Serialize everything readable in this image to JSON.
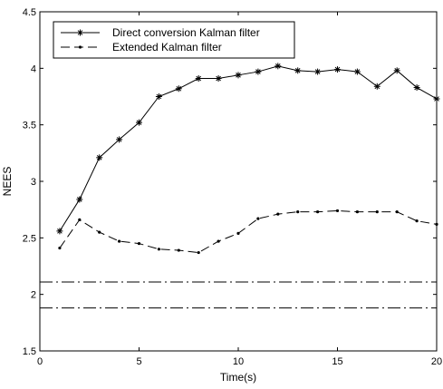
{
  "chart_data": {
    "type": "line",
    "title": "",
    "xlabel": "Time(s)",
    "ylabel": "NEES",
    "xlim": [
      0,
      20
    ],
    "ylim": [
      1.5,
      4.5
    ],
    "xticks": [
      "0",
      "5",
      "10",
      "15",
      "20"
    ],
    "yticks": [
      "1.5",
      "2",
      "2.5",
      "3",
      "3.5",
      "4",
      "4.5"
    ],
    "grid": false,
    "legend_position": "top-left",
    "series": [
      {
        "name": "Direct conversion Kalman filter",
        "style": "solid-star",
        "color": "#000000",
        "x": [
          1,
          2,
          3,
          4,
          5,
          6,
          7,
          8,
          9,
          10,
          11,
          12,
          13,
          14,
          15,
          16,
          17,
          18,
          19,
          20
        ],
        "y": [
          2.56,
          2.84,
          3.21,
          3.37,
          3.52,
          3.75,
          3.82,
          3.91,
          3.91,
          3.94,
          3.97,
          4.02,
          3.98,
          3.97,
          3.99,
          3.97,
          3.84,
          3.98,
          3.83,
          3.73
        ]
      },
      {
        "name": "Extended Kalman filter",
        "style": "dashed-dot",
        "color": "#000000",
        "x": [
          1,
          2,
          3,
          4,
          5,
          6,
          7,
          8,
          9,
          10,
          11,
          12,
          13,
          14,
          15,
          16,
          17,
          18,
          19,
          20
        ],
        "y": [
          2.41,
          2.66,
          2.55,
          2.47,
          2.45,
          2.4,
          2.39,
          2.37,
          2.47,
          2.54,
          2.67,
          2.71,
          2.73,
          2.73,
          2.74,
          2.73,
          2.73,
          2.73,
          2.65,
          2.62
        ]
      }
    ],
    "reference_lines": [
      {
        "y": 2.11,
        "style": "dash-dot"
      },
      {
        "y": 1.88,
        "style": "dash-dot"
      }
    ]
  }
}
